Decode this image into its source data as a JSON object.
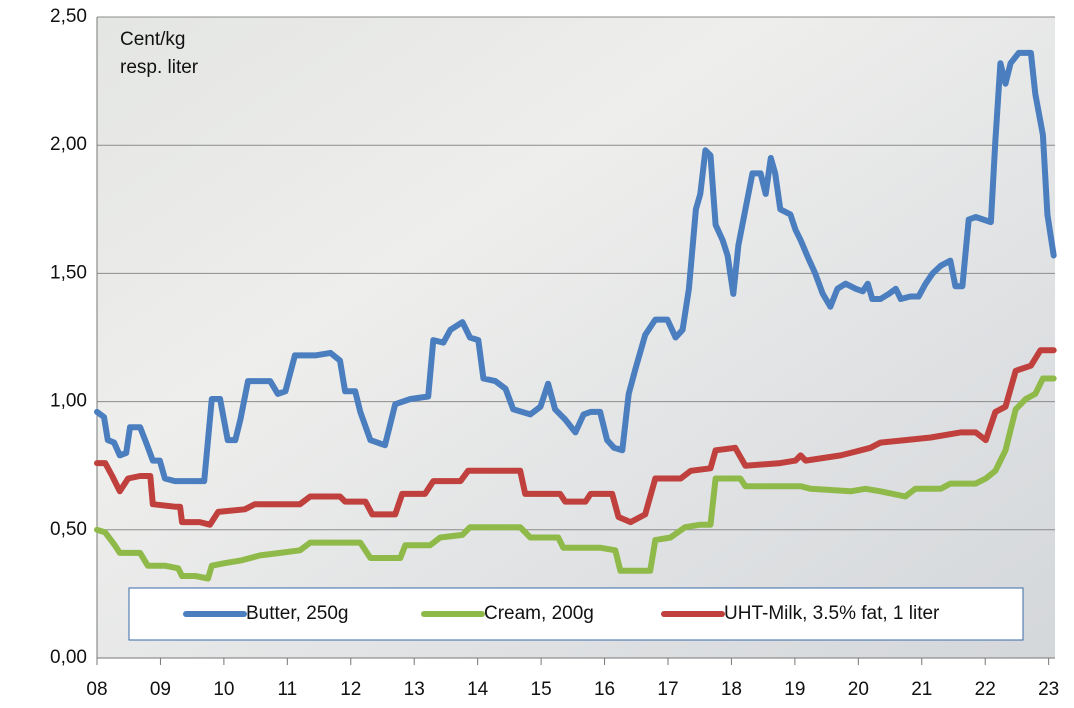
{
  "chart_data": {
    "type": "line",
    "annotations": [
      "Cent/kg",
      "resp. liter"
    ],
    "xlim": [
      8,
      23.1
    ],
    "xticks": [
      {
        "value": 8,
        "label": "08"
      },
      {
        "value": 9,
        "label": "09"
      },
      10,
      11,
      12,
      13,
      14,
      15,
      16,
      17,
      18,
      19,
      20,
      21,
      22,
      23
    ],
    "ylim": [
      0,
      2.5
    ],
    "yticks": [
      {
        "value": 0,
        "label": "0,00"
      },
      {
        "value": 0.5,
        "label": "0,50"
      },
      {
        "value": 1,
        "label": "1,00"
      },
      {
        "value": 1.5,
        "label": "1,50"
      },
      {
        "value": 2,
        "label": "2,00"
      },
      {
        "value": 2.5,
        "label": "2,50"
      }
    ],
    "grid": true,
    "legend": "lower center",
    "series": [
      {
        "name": "Butter, 250g",
        "color": "#4a7ebf",
        "x": [
          8.0,
          8.11,
          8.17,
          8.27,
          8.36,
          8.46,
          8.52,
          8.68,
          8.79,
          8.88,
          8.99,
          9.07,
          9.23,
          9.47,
          9.69,
          9.81,
          9.94,
          10.06,
          10.18,
          10.26,
          10.38,
          10.73,
          10.85,
          10.97,
          11.12,
          11.44,
          11.68,
          11.83,
          11.91,
          12.07,
          12.15,
          12.31,
          12.54,
          12.7,
          12.94,
          13.22,
          13.3,
          13.46,
          13.57,
          13.76,
          13.88,
          14.01,
          14.09,
          14.28,
          14.44,
          14.56,
          14.83,
          14.99,
          15.11,
          15.22,
          15.38,
          15.54,
          15.67,
          15.78,
          15.93,
          16.04,
          16.15,
          16.28,
          16.38,
          16.49,
          16.64,
          16.8,
          16.99,
          17.12,
          17.23,
          17.33,
          17.44,
          17.51,
          17.59,
          17.67,
          17.75,
          17.86,
          17.94,
          18.03,
          18.11,
          18.22,
          18.33,
          18.46,
          18.54,
          18.62,
          18.69,
          18.77,
          18.93,
          19.01,
          19.09,
          19.21,
          19.32,
          19.44,
          19.56,
          19.67,
          19.8,
          19.96,
          20.07,
          20.15,
          20.22,
          20.35,
          20.48,
          20.59,
          20.67,
          20.82,
          20.95,
          21.06,
          21.17,
          21.3,
          21.45,
          21.53,
          21.64,
          21.74,
          21.85,
          22.09,
          22.16,
          22.24,
          22.32,
          22.4,
          22.53,
          22.72,
          22.79,
          22.91,
          22.98,
          23.08
        ],
        "values": [
          0.96,
          0.94,
          0.85,
          0.84,
          0.79,
          0.8,
          0.9,
          0.9,
          0.83,
          0.77,
          0.77,
          0.7,
          0.69,
          0.69,
          0.69,
          1.01,
          1.01,
          0.85,
          0.85,
          0.93,
          1.08,
          1.08,
          1.03,
          1.04,
          1.18,
          1.18,
          1.19,
          1.16,
          1.04,
          1.04,
          0.96,
          0.85,
          0.83,
          0.99,
          1.01,
          1.02,
          1.24,
          1.23,
          1.28,
          1.31,
          1.25,
          1.24,
          1.09,
          1.08,
          1.05,
          0.97,
          0.95,
          0.98,
          1.07,
          0.97,
          0.93,
          0.88,
          0.95,
          0.96,
          0.96,
          0.85,
          0.82,
          0.81,
          1.03,
          1.13,
          1.26,
          1.32,
          1.32,
          1.25,
          1.28,
          1.44,
          1.75,
          1.81,
          1.98,
          1.96,
          1.69,
          1.63,
          1.57,
          1.42,
          1.61,
          1.75,
          1.89,
          1.89,
          1.81,
          1.95,
          1.89,
          1.75,
          1.73,
          1.67,
          1.63,
          1.56,
          1.5,
          1.42,
          1.37,
          1.44,
          1.46,
          1.44,
          1.43,
          1.46,
          1.4,
          1.4,
          1.42,
          1.44,
          1.4,
          1.41,
          1.41,
          1.46,
          1.5,
          1.53,
          1.55,
          1.45,
          1.45,
          1.71,
          1.72,
          1.7,
          2.02,
          2.32,
          2.24,
          2.32,
          2.36,
          2.36,
          2.2,
          2.04,
          1.73,
          1.57
        ]
      },
      {
        "name": "Cream, 200g",
        "color": "#8fba4a",
        "x": [
          8.0,
          8.13,
          8.28,
          8.36,
          8.68,
          8.8,
          9.07,
          9.28,
          9.34,
          9.55,
          9.75,
          9.81,
          10.02,
          10.26,
          10.57,
          10.89,
          11.2,
          11.36,
          12.15,
          12.31,
          12.78,
          12.86,
          13.25,
          13.41,
          13.76,
          13.88,
          14.67,
          14.83,
          15.27,
          15.35,
          15.93,
          16.17,
          16.25,
          16.72,
          16.8,
          17.04,
          17.27,
          17.51,
          17.67,
          17.75,
          18.14,
          18.22,
          19.09,
          19.25,
          19.88,
          20.11,
          20.35,
          20.74,
          20.9,
          21.3,
          21.45,
          21.85,
          22.01,
          22.16,
          22.32,
          22.48,
          22.64,
          22.79,
          22.91,
          23.08
        ],
        "values": [
          0.5,
          0.49,
          0.44,
          0.41,
          0.41,
          0.36,
          0.36,
          0.35,
          0.32,
          0.32,
          0.31,
          0.36,
          0.37,
          0.38,
          0.4,
          0.41,
          0.42,
          0.45,
          0.45,
          0.39,
          0.39,
          0.44,
          0.44,
          0.47,
          0.48,
          0.51,
          0.51,
          0.47,
          0.47,
          0.43,
          0.43,
          0.42,
          0.34,
          0.34,
          0.46,
          0.47,
          0.51,
          0.52,
          0.52,
          0.7,
          0.7,
          0.67,
          0.67,
          0.66,
          0.65,
          0.66,
          0.65,
          0.63,
          0.66,
          0.66,
          0.68,
          0.68,
          0.7,
          0.73,
          0.81,
          0.97,
          1.01,
          1.03,
          1.09,
          1.09
        ]
      },
      {
        "name": "UHT-Milk, 3.5% fat, 1 liter",
        "color": "#c0403d",
        "x": [
          8.0,
          8.13,
          8.24,
          8.36,
          8.49,
          8.68,
          8.84,
          8.88,
          9.23,
          9.31,
          9.34,
          9.62,
          9.78,
          9.91,
          10.33,
          10.49,
          11.2,
          11.36,
          11.83,
          11.91,
          12.23,
          12.34,
          12.7,
          12.81,
          13.17,
          13.3,
          13.73,
          13.85,
          14.67,
          14.75,
          15.3,
          15.38,
          15.7,
          15.78,
          16.12,
          16.22,
          16.41,
          16.64,
          16.8,
          17.2,
          17.36,
          17.67,
          17.75,
          18.06,
          18.22,
          18.77,
          19.01,
          19.09,
          19.17,
          19.72,
          19.88,
          20.19,
          20.35,
          20.74,
          21.14,
          21.61,
          21.85,
          22.01,
          22.16,
          22.32,
          22.48,
          22.72,
          22.87,
          23.08
        ],
        "values": [
          0.76,
          0.76,
          0.71,
          0.65,
          0.7,
          0.71,
          0.71,
          0.6,
          0.59,
          0.59,
          0.53,
          0.53,
          0.52,
          0.57,
          0.58,
          0.6,
          0.6,
          0.63,
          0.63,
          0.61,
          0.61,
          0.56,
          0.56,
          0.64,
          0.64,
          0.69,
          0.69,
          0.73,
          0.73,
          0.64,
          0.64,
          0.61,
          0.61,
          0.64,
          0.64,
          0.55,
          0.53,
          0.56,
          0.7,
          0.7,
          0.73,
          0.74,
          0.81,
          0.82,
          0.75,
          0.76,
          0.77,
          0.79,
          0.77,
          0.79,
          0.8,
          0.82,
          0.84,
          0.85,
          0.86,
          0.88,
          0.88,
          0.85,
          0.96,
          0.98,
          1.12,
          1.14,
          1.2,
          1.2
        ]
      }
    ]
  }
}
